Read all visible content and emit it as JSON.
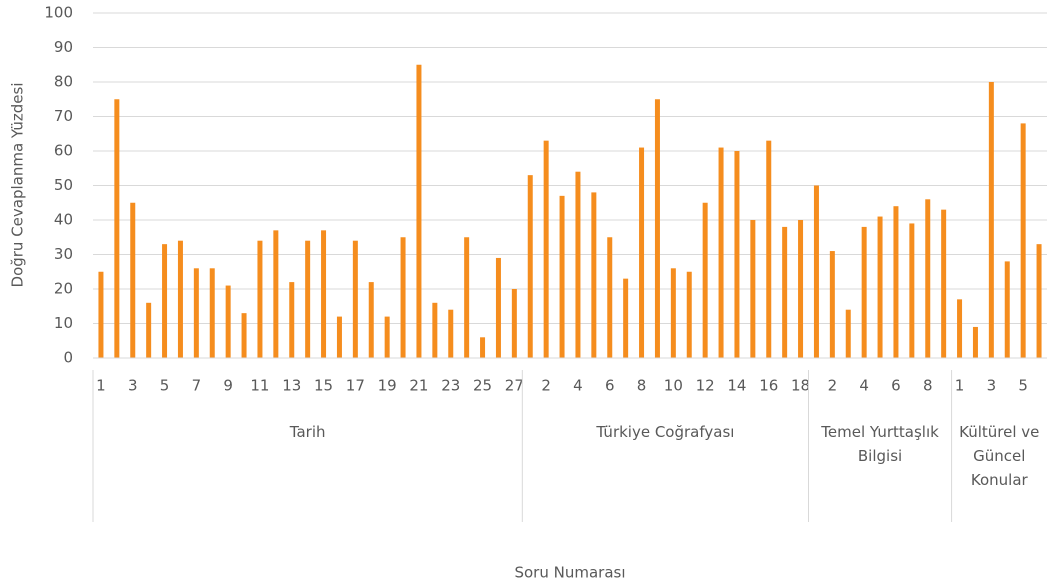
{
  "chart_data": {
    "type": "bar",
    "y_label": "Doğru Cevaplanma Yüzdesi",
    "x_label": "Soru Numarası",
    "color": "#f58d1e",
    "ylim": [
      0,
      100
    ],
    "yticks": [
      0,
      10,
      20,
      30,
      40,
      50,
      60,
      70,
      80,
      90,
      100
    ],
    "grid": true,
    "groups": [
      {
        "name": "Tarih",
        "categories": [
          "1",
          null,
          "3",
          null,
          "5",
          null,
          "7",
          null,
          "9",
          null,
          "11",
          null,
          "13",
          null,
          "15",
          null,
          "17",
          null,
          "19",
          null,
          "21",
          null,
          "23",
          null,
          "25",
          null,
          "27"
        ],
        "values": [
          25,
          75,
          45,
          16,
          33,
          34,
          26,
          26,
          21,
          13,
          34,
          37,
          22,
          34,
          37,
          12,
          34,
          22,
          12,
          35,
          85,
          16,
          14,
          35,
          6,
          29,
          20
        ]
      },
      {
        "name": "Türkiye Coğrafyası",
        "categories": [
          null,
          "2",
          null,
          "4",
          null,
          "6",
          null,
          "8",
          null,
          "10",
          null,
          "12",
          null,
          "14",
          null,
          "16",
          null,
          "18"
        ],
        "values": [
          53,
          63,
          47,
          54,
          48,
          35,
          23,
          61,
          75,
          26,
          25,
          45,
          61,
          60,
          40,
          63,
          38,
          40
        ]
      },
      {
        "name": "Temel Yurttaşlık Bilgisi",
        "categories": [
          null,
          "2",
          null,
          "4",
          null,
          "6",
          null,
          "8",
          null
        ],
        "values": [
          50,
          31,
          14,
          38,
          41,
          44,
          39,
          46,
          43
        ]
      },
      {
        "name": "Kültürel ve Güncel Konular",
        "categories": [
          "1",
          null,
          "3",
          null,
          "5",
          null
        ],
        "values": [
          17,
          9,
          80,
          28,
          68,
          33
        ]
      }
    ]
  }
}
